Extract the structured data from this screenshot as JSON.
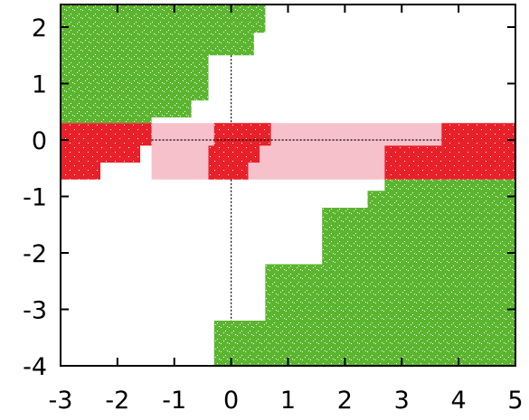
{
  "chart_data": {
    "type": "scatter",
    "title": "",
    "xlabel": "",
    "ylabel": "",
    "xlim": [
      -3,
      5
    ],
    "ylim": [
      -4,
      2.4
    ],
    "xticks": [
      -3,
      -2,
      -1,
      0,
      1,
      2,
      3,
      4,
      5
    ],
    "yticks": [
      -4,
      -3,
      -2,
      -1,
      0,
      1,
      2
    ],
    "xtick_labels": [
      "-3",
      "-2",
      "-1",
      "0",
      "1",
      "2",
      "3",
      "4",
      "5"
    ],
    "ytick_labels": [
      "-4",
      "-3",
      "-2",
      "-1",
      "0",
      "1",
      "2"
    ],
    "grid": false,
    "colors": {
      "green": "#5bb52f",
      "red": "#e8202a",
      "pink": "#f7c1cb"
    },
    "regions": [
      {
        "name": "",
        "color": "green",
        "polygon": [
          [
            -3,
            2.4
          ],
          [
            0.6,
            2.4
          ],
          [
            0.6,
            1.9
          ],
          [
            0.4,
            1.9
          ],
          [
            0.4,
            1.5
          ],
          [
            -0.4,
            1.5
          ],
          [
            -0.4,
            0.7
          ],
          [
            -0.7,
            0.7
          ],
          [
            -0.7,
            0.4
          ],
          [
            -1.4,
            0.4
          ],
          [
            -1.4,
            0.3
          ],
          [
            -3,
            0.3
          ]
        ]
      },
      {
        "name": "",
        "color": "green",
        "polygon": [
          [
            2.7,
            -0.7
          ],
          [
            5,
            -0.7
          ],
          [
            5,
            -4
          ],
          [
            -0.3,
            -4
          ],
          [
            -0.3,
            -3.2
          ],
          [
            0.6,
            -3.2
          ],
          [
            0.6,
            -2.2
          ],
          [
            1.6,
            -2.2
          ],
          [
            1.6,
            -1.2
          ],
          [
            2.4,
            -1.2
          ],
          [
            2.4,
            -0.9
          ],
          [
            2.7,
            -0.9
          ]
        ]
      },
      {
        "name": "",
        "color": "pink",
        "polygon": [
          [
            -1.4,
            0.3
          ],
          [
            3.7,
            0.3
          ],
          [
            3.7,
            -0.7
          ],
          [
            -1.4,
            -0.7
          ]
        ]
      },
      {
        "name": "",
        "color": "red",
        "polygon": [
          [
            -3,
            0.3
          ],
          [
            -1.4,
            0.3
          ],
          [
            -1.4,
            -0.1
          ],
          [
            -1.6,
            -0.1
          ],
          [
            -1.6,
            -0.4
          ],
          [
            -2.3,
            -0.4
          ],
          [
            -2.3,
            -0.7
          ],
          [
            -3,
            -0.7
          ]
        ]
      },
      {
        "name": "",
        "color": "red",
        "polygon": [
          [
            -0.3,
            0.3
          ],
          [
            0.7,
            0.3
          ],
          [
            0.7,
            -0.1
          ],
          [
            0.5,
            -0.1
          ],
          [
            0.5,
            -0.4
          ],
          [
            0.3,
            -0.4
          ],
          [
            0.3,
            -0.7
          ],
          [
            -0.4,
            -0.7
          ],
          [
            -0.4,
            -0.1
          ],
          [
            -0.3,
            -0.1
          ]
        ]
      },
      {
        "name": "",
        "color": "red",
        "polygon": [
          [
            3.7,
            0.3
          ],
          [
            5,
            0.3
          ],
          [
            5,
            -0.7
          ],
          [
            2.7,
            -0.7
          ],
          [
            2.7,
            -0.1
          ],
          [
            3.7,
            -0.1
          ]
        ]
      }
    ],
    "reference_lines": [
      {
        "orientation": "horizontal",
        "y": 0,
        "x_from": -1.4,
        "x_to": 3.7
      },
      {
        "orientation": "vertical",
        "x": 0,
        "y_from": 1.5,
        "y_to": 0.3
      },
      {
        "orientation": "vertical",
        "x": 0,
        "y_from": -0.7,
        "y_to": -3.2
      }
    ]
  }
}
